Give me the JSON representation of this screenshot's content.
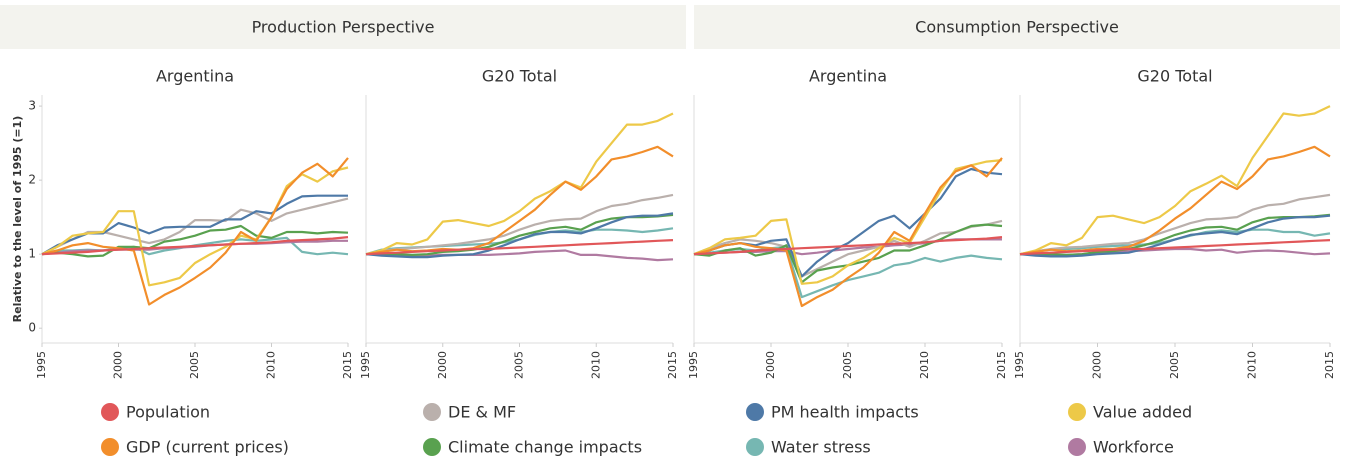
{
  "headers": [
    "Production Perspective",
    "Consumption Perspective"
  ],
  "chart_data": [
    {
      "type": "line",
      "title": "Argentina",
      "y_label": "Relative to the level of 1995 (=1)",
      "x": [
        1995,
        1996,
        1997,
        1998,
        1999,
        2000,
        2001,
        2002,
        2003,
        2004,
        2005,
        2006,
        2007,
        2008,
        2009,
        2010,
        2011,
        2012,
        2013,
        2014,
        2015
      ],
      "xlim": [
        1995,
        2015
      ],
      "xticks": [
        1995,
        2000,
        2005,
        2010,
        2015
      ],
      "ylim": [
        -0.2,
        3.15
      ],
      "yticks": [
        0,
        1,
        2,
        3
      ],
      "series": [
        {
          "name": "Population",
          "color": "#e15759",
          "values": [
            1.0,
            1.01,
            1.02,
            1.03,
            1.05,
            1.06,
            1.07,
            1.08,
            1.09,
            1.1,
            1.11,
            1.12,
            1.13,
            1.14,
            1.15,
            1.16,
            1.18,
            1.19,
            1.2,
            1.21,
            1.23
          ]
        },
        {
          "name": "GDP (current prices)",
          "color": "#f28e2b",
          "values": [
            1.0,
            1.05,
            1.12,
            1.15,
            1.1,
            1.08,
            1.05,
            0.32,
            0.45,
            0.55,
            0.68,
            0.82,
            1.02,
            1.3,
            1.18,
            1.5,
            1.88,
            2.1,
            2.22,
            2.05,
            2.3
          ]
        },
        {
          "name": "DE & MF",
          "color": "#bab0ac",
          "values": [
            1.0,
            1.1,
            1.2,
            1.3,
            1.3,
            1.25,
            1.2,
            1.15,
            1.2,
            1.3,
            1.46,
            1.46,
            1.45,
            1.6,
            1.55,
            1.45,
            1.55,
            1.6,
            1.65,
            1.7,
            1.75
          ]
        },
        {
          "name": "Climate change impacts",
          "color": "#59a14f",
          "values": [
            1.0,
            1.02,
            1.0,
            0.97,
            0.98,
            1.1,
            1.1,
            1.08,
            1.17,
            1.2,
            1.25,
            1.32,
            1.33,
            1.38,
            1.25,
            1.22,
            1.3,
            1.3,
            1.28,
            1.3,
            1.29
          ]
        },
        {
          "name": "PM health impacts",
          "color": "#4e79a7",
          "values": [
            1.0,
            1.12,
            1.2,
            1.28,
            1.28,
            1.42,
            1.36,
            1.28,
            1.36,
            1.37,
            1.37,
            1.37,
            1.47,
            1.47,
            1.58,
            1.55,
            1.68,
            1.78,
            1.79,
            1.79,
            1.79
          ]
        },
        {
          "name": "Water stress",
          "color": "#76b7b2",
          "values": [
            1.0,
            1.05,
            1.05,
            1.06,
            1.05,
            1.08,
            1.1,
            1.0,
            1.05,
            1.08,
            1.12,
            1.15,
            1.18,
            1.2,
            1.18,
            1.2,
            1.22,
            1.03,
            1.0,
            1.02,
            1.0
          ]
        },
        {
          "name": "Value added",
          "color": "#edc948",
          "values": [
            1.0,
            1.1,
            1.25,
            1.28,
            1.3,
            1.58,
            1.58,
            0.58,
            0.62,
            0.68,
            0.88,
            1.0,
            1.1,
            1.25,
            1.2,
            1.5,
            1.92,
            2.08,
            1.98,
            2.12,
            2.17
          ]
        },
        {
          "name": "Workforce",
          "color": "#b07aa1",
          "values": [
            1.0,
            1.02,
            1.04,
            1.05,
            1.05,
            1.06,
            1.06,
            1.06,
            1.08,
            1.09,
            1.1,
            1.12,
            1.13,
            1.14,
            1.14,
            1.15,
            1.16,
            1.17,
            1.17,
            1.18,
            1.18
          ]
        }
      ]
    },
    {
      "type": "line",
      "title": "G20 Total",
      "x": [
        1995,
        1996,
        1997,
        1998,
        1999,
        2000,
        2001,
        2002,
        2003,
        2004,
        2005,
        2006,
        2007,
        2008,
        2009,
        2010,
        2011,
        2012,
        2013,
        2014,
        2015
      ],
      "xlim": [
        1995,
        2015
      ],
      "xticks": [
        1995,
        2000,
        2005,
        2010,
        2015
      ],
      "ylim": [
        -0.2,
        3.15
      ],
      "series": [
        {
          "name": "Population",
          "color": "#e15759",
          "values": [
            1.0,
            1.01,
            1.02,
            1.03,
            1.04,
            1.05,
            1.06,
            1.07,
            1.07,
            1.08,
            1.09,
            1.1,
            1.11,
            1.12,
            1.13,
            1.14,
            1.15,
            1.16,
            1.17,
            1.18,
            1.19
          ]
        },
        {
          "name": "GDP (current prices)",
          "color": "#f28e2b",
          "values": [
            1.0,
            1.03,
            1.06,
            1.04,
            1.05,
            1.07,
            1.06,
            1.08,
            1.15,
            1.3,
            1.45,
            1.6,
            1.8,
            1.98,
            1.87,
            2.05,
            2.28,
            2.32,
            2.38,
            2.45,
            2.32
          ]
        },
        {
          "name": "DE & MF",
          "color": "#bab0ac",
          "values": [
            1.0,
            1.04,
            1.07,
            1.08,
            1.1,
            1.12,
            1.14,
            1.17,
            1.2,
            1.25,
            1.33,
            1.4,
            1.45,
            1.47,
            1.48,
            1.58,
            1.65,
            1.68,
            1.73,
            1.76,
            1.8
          ]
        },
        {
          "name": "Climate change impacts",
          "color": "#59a14f",
          "values": [
            1.0,
            1.0,
            1.0,
            0.99,
            1.0,
            1.03,
            1.04,
            1.06,
            1.1,
            1.17,
            1.25,
            1.3,
            1.35,
            1.37,
            1.33,
            1.43,
            1.48,
            1.5,
            1.5,
            1.51,
            1.53
          ]
        },
        {
          "name": "PM health impacts",
          "color": "#4e79a7",
          "values": [
            1.0,
            0.98,
            0.97,
            0.96,
            0.96,
            0.98,
            0.99,
            1.0,
            1.05,
            1.12,
            1.2,
            1.27,
            1.3,
            1.3,
            1.28,
            1.35,
            1.43,
            1.5,
            1.52,
            1.52,
            1.55
          ]
        },
        {
          "name": "Water stress",
          "color": "#76b7b2",
          "values": [
            1.0,
            1.06,
            1.08,
            1.09,
            1.1,
            1.11,
            1.12,
            1.13,
            1.14,
            1.16,
            1.2,
            1.26,
            1.3,
            1.32,
            1.3,
            1.33,
            1.33,
            1.32,
            1.3,
            1.32,
            1.35
          ]
        },
        {
          "name": "Value added",
          "color": "#edc948",
          "values": [
            1.0,
            1.05,
            1.15,
            1.13,
            1.2,
            1.44,
            1.46,
            1.42,
            1.38,
            1.45,
            1.58,
            1.75,
            1.85,
            1.98,
            1.9,
            2.25,
            2.5,
            2.75,
            2.75,
            2.8,
            2.9
          ]
        },
        {
          "name": "Workforce",
          "color": "#b07aa1",
          "values": [
            1.0,
            0.99,
            0.99,
            0.98,
            0.98,
            0.99,
            0.99,
            0.99,
            0.99,
            1.0,
            1.01,
            1.03,
            1.04,
            1.05,
            0.99,
            0.99,
            0.97,
            0.95,
            0.94,
            0.92,
            0.93
          ]
        }
      ]
    },
    {
      "type": "line",
      "title": "Argentina",
      "x": [
        1995,
        1996,
        1997,
        1998,
        1999,
        2000,
        2001,
        2002,
        2003,
        2004,
        2005,
        2006,
        2007,
        2008,
        2009,
        2010,
        2011,
        2012,
        2013,
        2014,
        2015
      ],
      "xlim": [
        1995,
        2015
      ],
      "xticks": [
        1995,
        2000,
        2005,
        2010,
        2015
      ],
      "ylim": [
        -0.2,
        3.15
      ],
      "series": [
        {
          "name": "Population",
          "color": "#e15759",
          "values": [
            1.0,
            1.01,
            1.02,
            1.03,
            1.05,
            1.06,
            1.07,
            1.08,
            1.09,
            1.1,
            1.11,
            1.12,
            1.13,
            1.14,
            1.15,
            1.16,
            1.18,
            1.19,
            1.2,
            1.21,
            1.23
          ]
        },
        {
          "name": "GDP (current prices)",
          "color": "#f28e2b",
          "values": [
            1.0,
            1.05,
            1.12,
            1.15,
            1.1,
            1.08,
            1.05,
            0.3,
            0.42,
            0.52,
            0.68,
            0.82,
            1.02,
            1.3,
            1.18,
            1.55,
            1.9,
            2.12,
            2.2,
            2.05,
            2.3
          ]
        },
        {
          "name": "DE & MF",
          "color": "#bab0ac",
          "values": [
            1.0,
            1.08,
            1.15,
            1.2,
            1.18,
            1.15,
            1.1,
            0.7,
            0.8,
            0.9,
            1.0,
            1.05,
            1.1,
            1.18,
            1.1,
            1.18,
            1.28,
            1.3,
            1.37,
            1.4,
            1.45
          ]
        },
        {
          "name": "Climate change impacts",
          "color": "#59a14f",
          "values": [
            1.0,
            0.98,
            1.05,
            1.08,
            0.98,
            1.02,
            1.12,
            0.62,
            0.78,
            0.82,
            0.85,
            0.9,
            0.95,
            1.05,
            1.05,
            1.12,
            1.2,
            1.3,
            1.38,
            1.4,
            1.38
          ]
        },
        {
          "name": "PM health impacts",
          "color": "#4e79a7",
          "values": [
            1.0,
            1.05,
            1.12,
            1.15,
            1.12,
            1.18,
            1.2,
            0.7,
            0.9,
            1.05,
            1.15,
            1.3,
            1.45,
            1.52,
            1.35,
            1.55,
            1.75,
            2.05,
            2.15,
            2.1,
            2.08
          ]
        },
        {
          "name": "Water stress",
          "color": "#76b7b2",
          "values": [
            1.0,
            1.02,
            1.05,
            1.07,
            1.05,
            1.08,
            1.1,
            0.42,
            0.5,
            0.58,
            0.65,
            0.7,
            0.75,
            0.85,
            0.88,
            0.95,
            0.9,
            0.95,
            0.98,
            0.95,
            0.93
          ]
        },
        {
          "name": "Value added",
          "color": "#edc948",
          "values": [
            1.0,
            1.08,
            1.2,
            1.22,
            1.25,
            1.45,
            1.47,
            0.6,
            0.62,
            0.7,
            0.85,
            0.95,
            1.08,
            1.22,
            1.15,
            1.5,
            1.85,
            2.15,
            2.2,
            2.25,
            2.27
          ]
        },
        {
          "name": "Workforce",
          "color": "#b07aa1",
          "values": [
            1.0,
            1.01,
            1.02,
            1.03,
            1.03,
            1.04,
            1.04,
            1.0,
            1.02,
            1.05,
            1.07,
            1.09,
            1.1,
            1.12,
            1.13,
            1.15,
            1.18,
            1.2,
            1.2,
            1.2,
            1.2
          ]
        }
      ]
    },
    {
      "type": "line",
      "title": "G20 Total",
      "x": [
        1995,
        1996,
        1997,
        1998,
        1999,
        2000,
        2001,
        2002,
        2003,
        2004,
        2005,
        2006,
        2007,
        2008,
        2009,
        2010,
        2011,
        2012,
        2013,
        2014,
        2015
      ],
      "xlim": [
        1995,
        2015
      ],
      "xticks": [
        1995,
        2000,
        2005,
        2010,
        2015
      ],
      "ylim": [
        -0.2,
        3.15
      ],
      "series": [
        {
          "name": "Population",
          "color": "#e15759",
          "values": [
            1.0,
            1.01,
            1.02,
            1.03,
            1.04,
            1.05,
            1.06,
            1.07,
            1.07,
            1.08,
            1.09,
            1.1,
            1.11,
            1.12,
            1.13,
            1.14,
            1.15,
            1.16,
            1.17,
            1.18,
            1.19
          ]
        },
        {
          "name": "GDP (current prices)",
          "color": "#f28e2b",
          "values": [
            1.0,
            1.03,
            1.06,
            1.04,
            1.05,
            1.07,
            1.07,
            1.1,
            1.18,
            1.32,
            1.48,
            1.62,
            1.8,
            1.98,
            1.88,
            2.05,
            2.28,
            2.32,
            2.38,
            2.45,
            2.32
          ]
        },
        {
          "name": "DE & MF",
          "color": "#bab0ac",
          "values": [
            1.0,
            1.04,
            1.07,
            1.09,
            1.1,
            1.12,
            1.14,
            1.15,
            1.2,
            1.28,
            1.35,
            1.42,
            1.47,
            1.48,
            1.5,
            1.6,
            1.66,
            1.68,
            1.74,
            1.77,
            1.8
          ]
        },
        {
          "name": "Climate change impacts",
          "color": "#59a14f",
          "values": [
            1.0,
            1.0,
            1.0,
            0.99,
            1.0,
            1.03,
            1.04,
            1.07,
            1.12,
            1.18,
            1.26,
            1.32,
            1.36,
            1.37,
            1.33,
            1.43,
            1.49,
            1.5,
            1.5,
            1.51,
            1.53
          ]
        },
        {
          "name": "PM health impacts",
          "color": "#4e79a7",
          "values": [
            1.0,
            0.98,
            0.97,
            0.97,
            0.98,
            1.0,
            1.01,
            1.02,
            1.07,
            1.13,
            1.2,
            1.26,
            1.28,
            1.3,
            1.27,
            1.35,
            1.43,
            1.48,
            1.5,
            1.5,
            1.52
          ]
        },
        {
          "name": "Water stress",
          "color": "#76b7b2",
          "values": [
            1.0,
            1.04,
            1.06,
            1.07,
            1.08,
            1.1,
            1.11,
            1.12,
            1.13,
            1.15,
            1.2,
            1.25,
            1.3,
            1.32,
            1.3,
            1.33,
            1.33,
            1.3,
            1.3,
            1.25,
            1.28
          ]
        },
        {
          "name": "Value added",
          "color": "#edc948",
          "values": [
            1.0,
            1.05,
            1.15,
            1.12,
            1.22,
            1.5,
            1.52,
            1.47,
            1.42,
            1.5,
            1.65,
            1.85,
            1.95,
            2.06,
            1.92,
            2.3,
            2.6,
            2.9,
            2.87,
            2.9,
            3.0
          ]
        },
        {
          "name": "Workforce",
          "color": "#b07aa1",
          "values": [
            1.0,
            0.99,
            0.99,
            0.99,
            1.0,
            1.02,
            1.03,
            1.04,
            1.05,
            1.06,
            1.07,
            1.07,
            1.05,
            1.06,
            1.02,
            1.04,
            1.05,
            1.04,
            1.02,
            1.0,
            1.01
          ]
        }
      ]
    }
  ]
}
